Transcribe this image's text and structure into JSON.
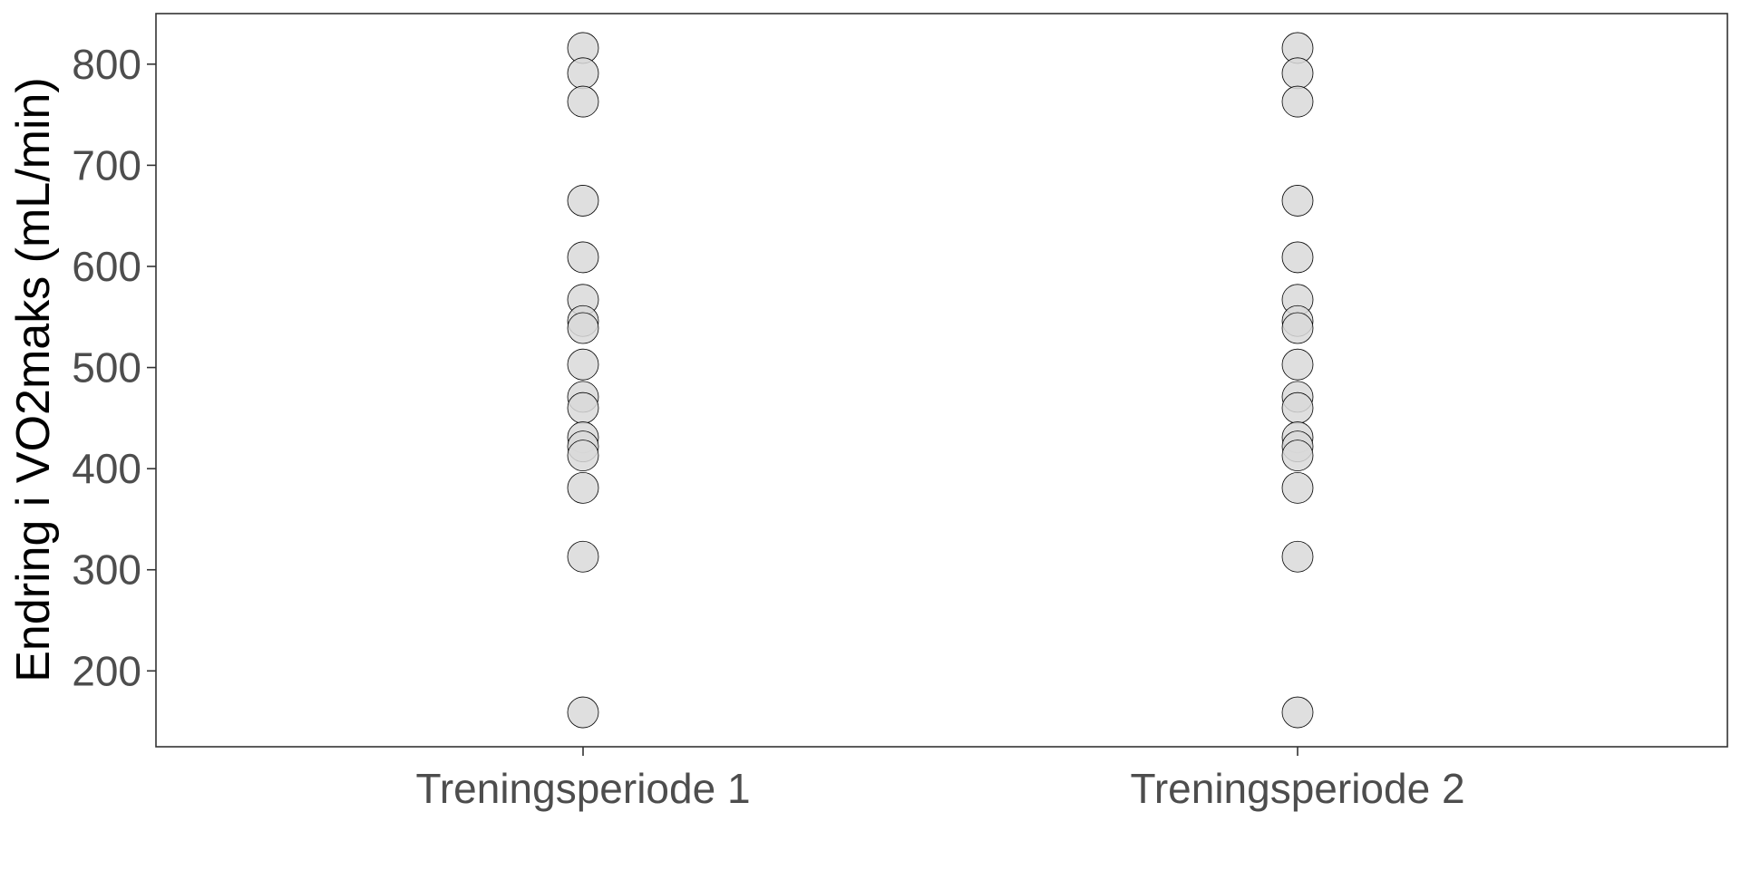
{
  "chart_data": {
    "type": "scatter",
    "title": "",
    "xlabel": "",
    "ylabel": "Endring i VO2maks (mL/min)",
    "categories": [
      "Treningsperiode 1",
      "Treningsperiode 2"
    ],
    "y_ticks": [
      200,
      300,
      400,
      500,
      600,
      700,
      800
    ],
    "y_tick_labels": [
      "200",
      "300",
      "400",
      "500",
      "600",
      "700",
      "800"
    ],
    "ylim": [
      125,
      850
    ],
    "grid": false,
    "series": [
      {
        "category": "Treningsperiode 1",
        "values": [
          816,
          791,
          763,
          665,
          609,
          567,
          546,
          539,
          503,
          471,
          460,
          431,
          422,
          413,
          381,
          313,
          159
        ]
      },
      {
        "category": "Treningsperiode 2",
        "values": [
          816,
          791,
          763,
          665,
          609,
          567,
          546,
          539,
          503,
          471,
          460,
          431,
          422,
          413,
          381,
          313,
          159
        ]
      }
    ],
    "point_fill": "#d9d9d9",
    "point_stroke": "#000000",
    "axis_color": "#333333",
    "tick_label_color": "#4d4d4d",
    "title_color": "#000000"
  }
}
